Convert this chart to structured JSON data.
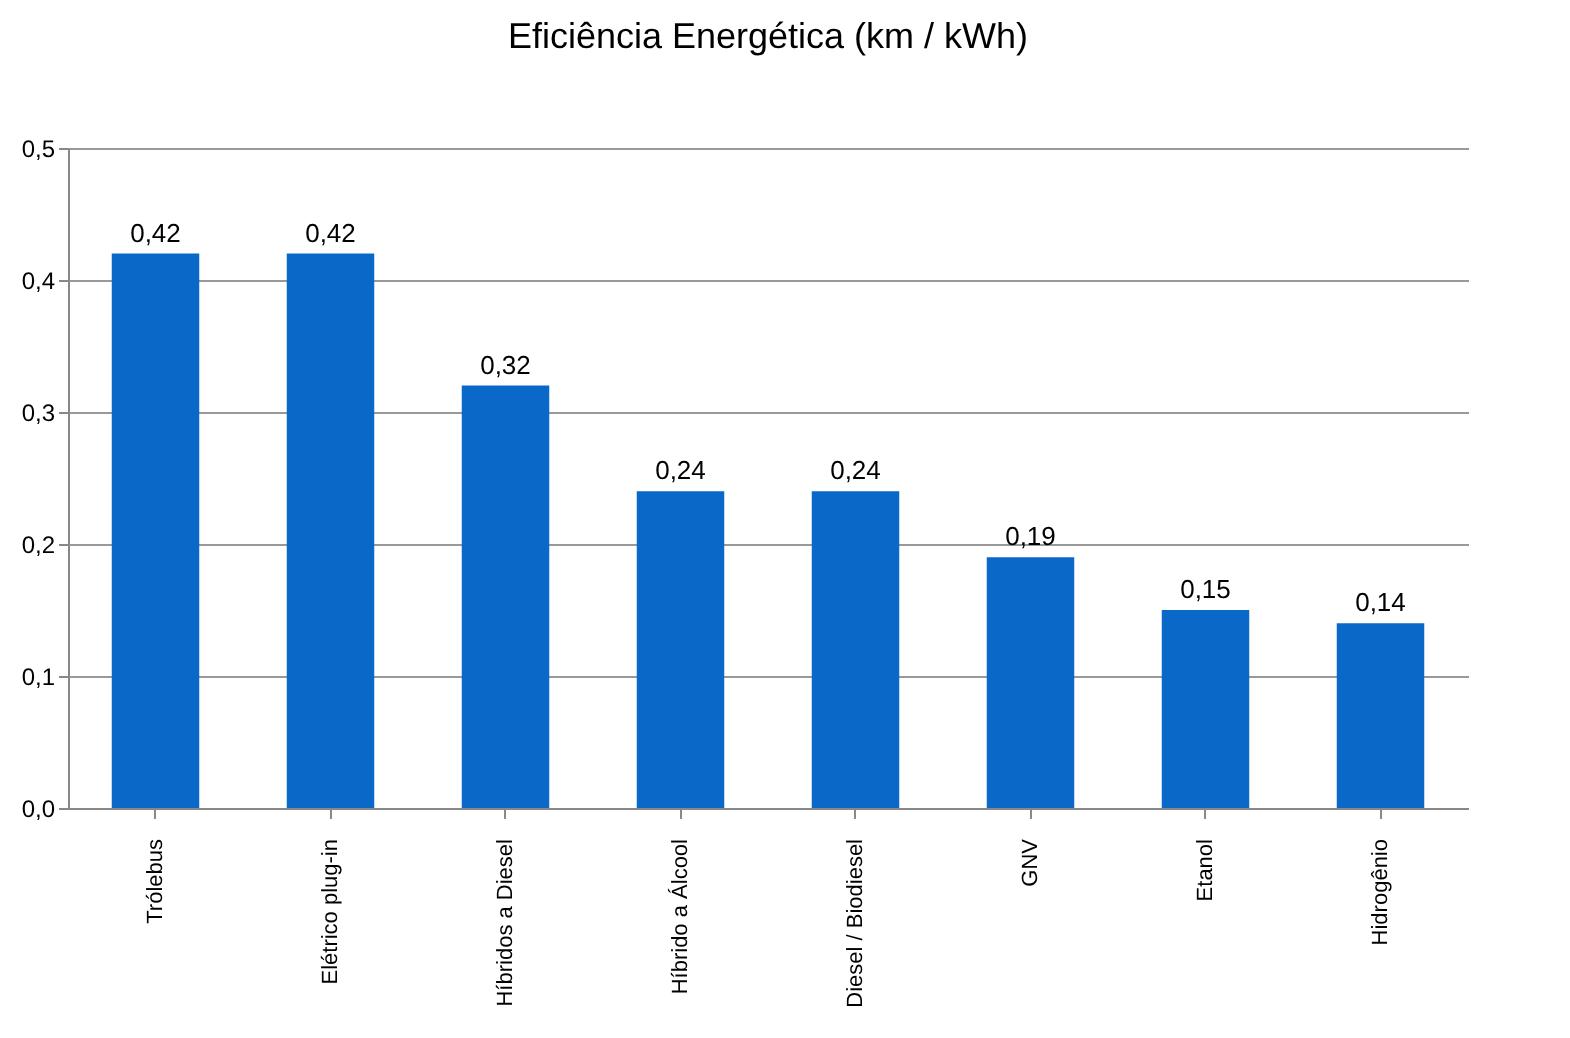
{
  "chart_data": {
    "type": "bar",
    "title": "Eficiência Energética (km / kWh)",
    "categories": [
      "Trólebus",
      "Elétrico plug-in",
      "Híbridos a Diesel",
      "Híbrido a Álcool",
      "Diesel / Biodiesel",
      "GNV",
      "Etanol",
      "Hidrogênio"
    ],
    "values": [
      0.42,
      0.42,
      0.32,
      0.24,
      0.24,
      0.19,
      0.15,
      0.14
    ],
    "value_labels": [
      "0,42",
      "0,42",
      "0,32",
      "0,24",
      "0,24",
      "0,19",
      "0,15",
      "0,14"
    ],
    "color": "#0a68c8",
    "ylim": [
      0,
      0.5
    ],
    "yticks": [
      {
        "value": 0,
        "label": "0,0"
      },
      {
        "value": 0.1,
        "label": "0,1"
      },
      {
        "value": 0.2,
        "label": "0,2"
      },
      {
        "value": 0.3,
        "label": "0,3"
      },
      {
        "value": 0.4,
        "label": "0,4"
      },
      {
        "value": 0.5,
        "label": "0,5"
      }
    ],
    "grid": "y"
  }
}
